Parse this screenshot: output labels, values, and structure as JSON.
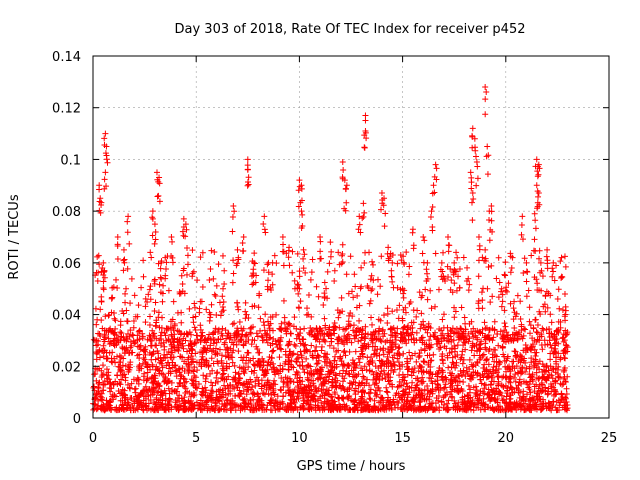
{
  "chart_data": {
    "type": "scatter",
    "title": "Day 303 of 2018, Rate Of TEC Index for receiver p452",
    "xlabel": "GPS time / hours",
    "ylabel": "ROTI / TECUs",
    "xlim": [
      0,
      25
    ],
    "ylim": [
      0,
      0.14
    ],
    "xticks": [
      0,
      5,
      10,
      15,
      20,
      25
    ],
    "yticks": [
      0,
      0.02,
      0.04,
      0.06,
      0.08,
      0.1,
      0.12,
      0.14
    ],
    "xtick_labels": [
      "0",
      "5",
      "10",
      "15",
      "20",
      "25"
    ],
    "ytick_labels": [
      "0",
      "0.02",
      "0.04",
      "0.06",
      "0.08",
      "0.1",
      "0.12",
      "0.14"
    ],
    "grid": true,
    "marker": "+",
    "color": "#ff0000",
    "series": [
      {
        "name": "ROTI",
        "points": [
          [
            0.6,
            0.11
          ],
          [
            0.65,
            0.105
          ],
          [
            0.6,
            0.095
          ],
          [
            0.3,
            0.09
          ],
          [
            0.35,
            0.085
          ],
          [
            0.5,
            0.06
          ],
          [
            0.45,
            0.058
          ],
          [
            0.55,
            0.057
          ],
          [
            0.2,
            0.038
          ],
          [
            0.1,
            0.03
          ],
          [
            1.2,
            0.07
          ],
          [
            1.5,
            0.065
          ],
          [
            1.7,
            0.078
          ],
          [
            1.6,
            0.05
          ],
          [
            2.9,
            0.08
          ],
          [
            3.1,
            0.095
          ],
          [
            3.2,
            0.093
          ],
          [
            3.0,
            0.075
          ],
          [
            3.3,
            0.06
          ],
          [
            3.5,
            0.062
          ],
          [
            3.8,
            0.07
          ],
          [
            4.4,
            0.077
          ],
          [
            4.5,
            0.075
          ],
          [
            4.3,
            0.055
          ],
          [
            5.2,
            0.045
          ],
          [
            5.7,
            0.04
          ],
          [
            6.3,
            0.05
          ],
          [
            6.8,
            0.082
          ],
          [
            7.0,
            0.065
          ],
          [
            7.3,
            0.07
          ],
          [
            7.5,
            0.1
          ],
          [
            7.5,
            0.096
          ],
          [
            7.8,
            0.06
          ],
          [
            8.3,
            0.078
          ],
          [
            8.5,
            0.06
          ],
          [
            9.2,
            0.07
          ],
          [
            9.5,
            0.066
          ],
          [
            10.0,
            0.092
          ],
          [
            10.1,
            0.09
          ],
          [
            10.1,
            0.08
          ],
          [
            10.2,
            0.065
          ],
          [
            10.0,
            0.05
          ],
          [
            11.0,
            0.07
          ],
          [
            11.5,
            0.068
          ],
          [
            12.1,
            0.099
          ],
          [
            12.2,
            0.092
          ],
          [
            12.3,
            0.09
          ],
          [
            12.1,
            0.067
          ],
          [
            12.9,
            0.078
          ],
          [
            13.2,
            0.117
          ],
          [
            13.2,
            0.111
          ],
          [
            13.1,
            0.083
          ],
          [
            13.5,
            0.055
          ],
          [
            14.0,
            0.087
          ],
          [
            14.1,
            0.085
          ],
          [
            14.3,
            0.066
          ],
          [
            14.5,
            0.06
          ],
          [
            15.0,
            0.05
          ],
          [
            15.5,
            0.073
          ],
          [
            16.0,
            0.07
          ],
          [
            16.2,
            0.06
          ],
          [
            16.5,
            0.09
          ],
          [
            16.6,
            0.098
          ],
          [
            16.4,
            0.08
          ],
          [
            16.9,
            0.06
          ],
          [
            17.2,
            0.07
          ],
          [
            17.5,
            0.06
          ],
          [
            18.3,
            0.095
          ],
          [
            18.4,
            0.112
          ],
          [
            18.5,
            0.108
          ],
          [
            18.6,
            0.099
          ],
          [
            18.4,
            0.087
          ],
          [
            18.7,
            0.07
          ],
          [
            19.0,
            0.128
          ],
          [
            19.1,
            0.105
          ],
          [
            19.2,
            0.08
          ],
          [
            19.3,
            0.082
          ],
          [
            19.0,
            0.065
          ],
          [
            19.8,
            0.05
          ],
          [
            20.4,
            0.045
          ],
          [
            20.8,
            0.078
          ],
          [
            21.0,
            0.06
          ],
          [
            21.5,
            0.1
          ],
          [
            21.6,
            0.098
          ],
          [
            21.5,
            0.09
          ],
          [
            21.6,
            0.087
          ],
          [
            21.4,
            0.079
          ],
          [
            21.7,
            0.06
          ],
          [
            22.0,
            0.065
          ],
          [
            22.3,
            0.06
          ],
          [
            22.7,
            0.062
          ],
          [
            22.9,
            0.043
          ],
          [
            22.8,
            0.025
          ]
        ]
      }
    ],
    "dense_band": {
      "x_range": [
        0,
        23
      ],
      "y_range": [
        0.003,
        0.035
      ],
      "description": "dense cloud of + markers between ~0.005 and ~0.035 TECUs across 0–23 h"
    }
  }
}
